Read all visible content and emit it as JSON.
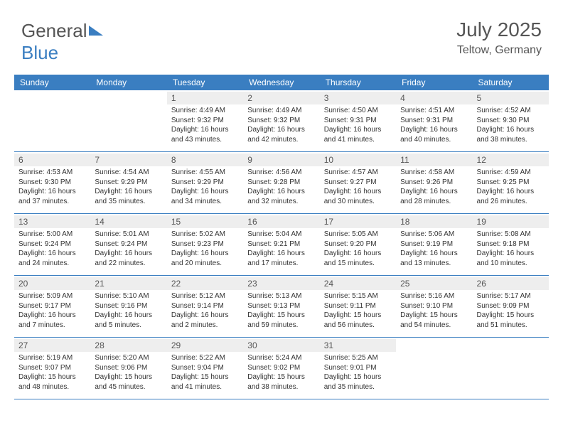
{
  "logo": {
    "text1": "General",
    "text2": "Blue"
  },
  "header": {
    "month": "July 2025",
    "location": "Teltow, Germany"
  },
  "colors": {
    "accent": "#3a7ec1",
    "header_bg": "#3a7ec1",
    "daynum_bg": "#eeeeee",
    "text": "#333333",
    "muted": "#555555",
    "white": "#ffffff"
  },
  "dayNames": [
    "Sunday",
    "Monday",
    "Tuesday",
    "Wednesday",
    "Thursday",
    "Friday",
    "Saturday"
  ],
  "weeks": [
    [
      {
        "n": "",
        "sr": "",
        "ss": "",
        "dl": ""
      },
      {
        "n": "",
        "sr": "",
        "ss": "",
        "dl": ""
      },
      {
        "n": "1",
        "sr": "4:49 AM",
        "ss": "9:32 PM",
        "dl": "16 hours and 43 minutes."
      },
      {
        "n": "2",
        "sr": "4:49 AM",
        "ss": "9:32 PM",
        "dl": "16 hours and 42 minutes."
      },
      {
        "n": "3",
        "sr": "4:50 AM",
        "ss": "9:31 PM",
        "dl": "16 hours and 41 minutes."
      },
      {
        "n": "4",
        "sr": "4:51 AM",
        "ss": "9:31 PM",
        "dl": "16 hours and 40 minutes."
      },
      {
        "n": "5",
        "sr": "4:52 AM",
        "ss": "9:30 PM",
        "dl": "16 hours and 38 minutes."
      }
    ],
    [
      {
        "n": "6",
        "sr": "4:53 AM",
        "ss": "9:30 PM",
        "dl": "16 hours and 37 minutes."
      },
      {
        "n": "7",
        "sr": "4:54 AM",
        "ss": "9:29 PM",
        "dl": "16 hours and 35 minutes."
      },
      {
        "n": "8",
        "sr": "4:55 AM",
        "ss": "9:29 PM",
        "dl": "16 hours and 34 minutes."
      },
      {
        "n": "9",
        "sr": "4:56 AM",
        "ss": "9:28 PM",
        "dl": "16 hours and 32 minutes."
      },
      {
        "n": "10",
        "sr": "4:57 AM",
        "ss": "9:27 PM",
        "dl": "16 hours and 30 minutes."
      },
      {
        "n": "11",
        "sr": "4:58 AM",
        "ss": "9:26 PM",
        "dl": "16 hours and 28 minutes."
      },
      {
        "n": "12",
        "sr": "4:59 AM",
        "ss": "9:25 PM",
        "dl": "16 hours and 26 minutes."
      }
    ],
    [
      {
        "n": "13",
        "sr": "5:00 AM",
        "ss": "9:24 PM",
        "dl": "16 hours and 24 minutes."
      },
      {
        "n": "14",
        "sr": "5:01 AM",
        "ss": "9:24 PM",
        "dl": "16 hours and 22 minutes."
      },
      {
        "n": "15",
        "sr": "5:02 AM",
        "ss": "9:23 PM",
        "dl": "16 hours and 20 minutes."
      },
      {
        "n": "16",
        "sr": "5:04 AM",
        "ss": "9:21 PM",
        "dl": "16 hours and 17 minutes."
      },
      {
        "n": "17",
        "sr": "5:05 AM",
        "ss": "9:20 PM",
        "dl": "16 hours and 15 minutes."
      },
      {
        "n": "18",
        "sr": "5:06 AM",
        "ss": "9:19 PM",
        "dl": "16 hours and 13 minutes."
      },
      {
        "n": "19",
        "sr": "5:08 AM",
        "ss": "9:18 PM",
        "dl": "16 hours and 10 minutes."
      }
    ],
    [
      {
        "n": "20",
        "sr": "5:09 AM",
        "ss": "9:17 PM",
        "dl": "16 hours and 7 minutes."
      },
      {
        "n": "21",
        "sr": "5:10 AM",
        "ss": "9:16 PM",
        "dl": "16 hours and 5 minutes."
      },
      {
        "n": "22",
        "sr": "5:12 AM",
        "ss": "9:14 PM",
        "dl": "16 hours and 2 minutes."
      },
      {
        "n": "23",
        "sr": "5:13 AM",
        "ss": "9:13 PM",
        "dl": "15 hours and 59 minutes."
      },
      {
        "n": "24",
        "sr": "5:15 AM",
        "ss": "9:11 PM",
        "dl": "15 hours and 56 minutes."
      },
      {
        "n": "25",
        "sr": "5:16 AM",
        "ss": "9:10 PM",
        "dl": "15 hours and 54 minutes."
      },
      {
        "n": "26",
        "sr": "5:17 AM",
        "ss": "9:09 PM",
        "dl": "15 hours and 51 minutes."
      }
    ],
    [
      {
        "n": "27",
        "sr": "5:19 AM",
        "ss": "9:07 PM",
        "dl": "15 hours and 48 minutes."
      },
      {
        "n": "28",
        "sr": "5:20 AM",
        "ss": "9:06 PM",
        "dl": "15 hours and 45 minutes."
      },
      {
        "n": "29",
        "sr": "5:22 AM",
        "ss": "9:04 PM",
        "dl": "15 hours and 41 minutes."
      },
      {
        "n": "30",
        "sr": "5:24 AM",
        "ss": "9:02 PM",
        "dl": "15 hours and 38 minutes."
      },
      {
        "n": "31",
        "sr": "5:25 AM",
        "ss": "9:01 PM",
        "dl": "15 hours and 35 minutes."
      },
      {
        "n": "",
        "sr": "",
        "ss": "",
        "dl": ""
      },
      {
        "n": "",
        "sr": "",
        "ss": "",
        "dl": ""
      }
    ]
  ],
  "labels": {
    "sunrise": "Sunrise: ",
    "sunset": "Sunset: ",
    "daylight": "Daylight: "
  }
}
